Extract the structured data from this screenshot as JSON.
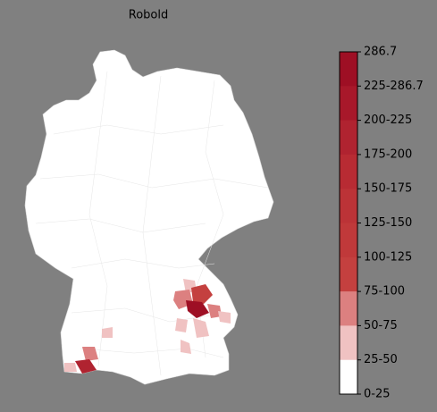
{
  "title": "Robold",
  "colorbar": {
    "labels": [
      "286.7",
      "225-286.7",
      "200-225",
      "175-200",
      "150-175",
      "125-150",
      "100-125",
      "75-100",
      "50-75",
      "25-50",
      "0-25"
    ],
    "colors": [
      "#9e0f24",
      "#a8182a",
      "#b02330",
      "#b82b33",
      "#bc3337",
      "#c0393a",
      "#c4403f",
      "#dc8080",
      "#f0c2c2",
      "#ffffff"
    ]
  }
}
